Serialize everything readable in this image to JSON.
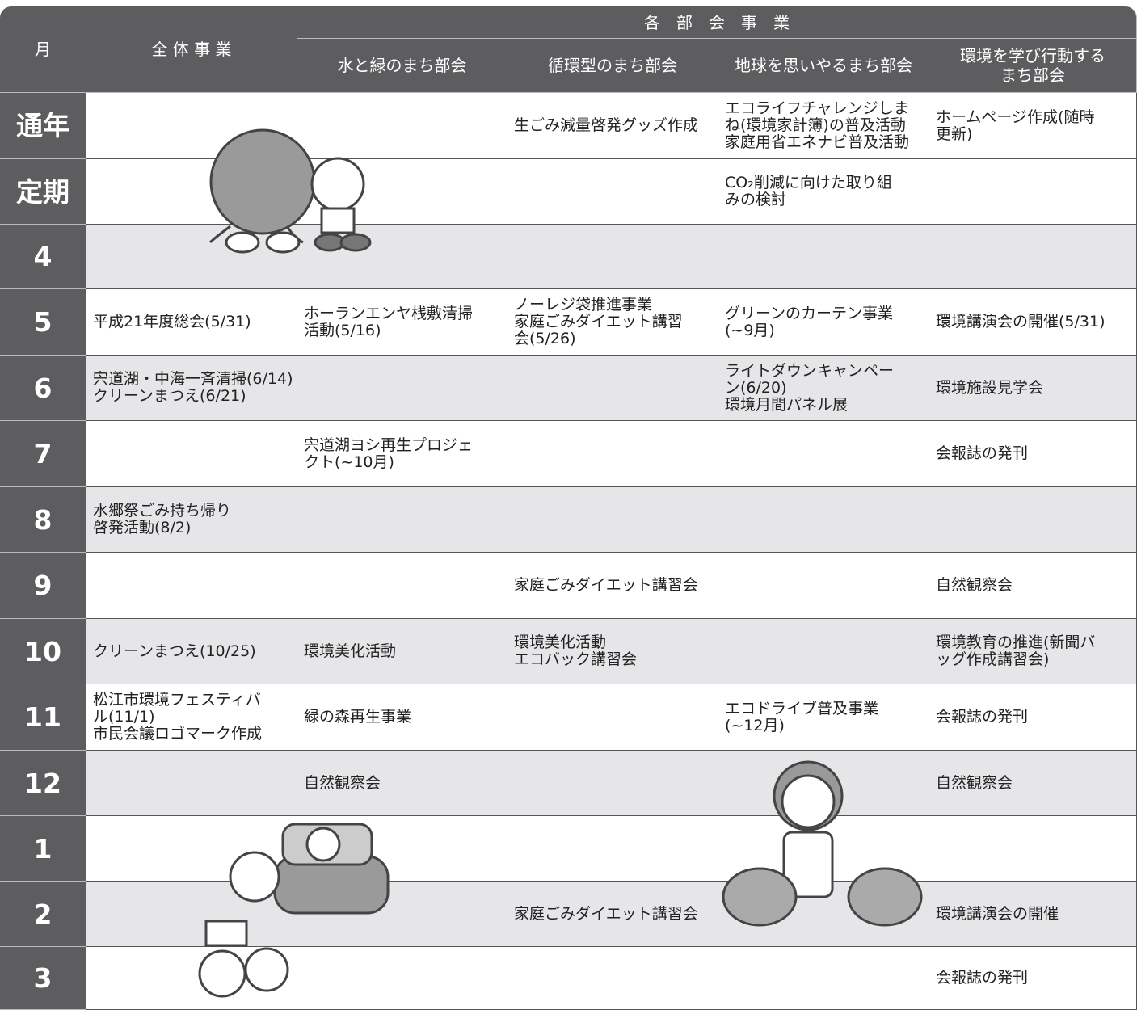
{
  "header": {
    "month": "月",
    "overall": "全 体 事 業",
    "group": "各　部　会　事　業",
    "committees": [
      [
        "水と緑のまち部会"
      ],
      [
        "循環型のまち部会"
      ],
      [
        "地球を思いやるまち部会"
      ],
      [
        "環境を学び行動する",
        "まち部会"
      ]
    ]
  },
  "rows": [
    {
      "month": "通年",
      "cells": [
        [],
        [],
        [
          "生ごみ減量啓発グッズ作成"
        ],
        [
          "エコライフチャレンジしま",
          "ね(環境家計簿)の普及活動",
          "家庭用省エネナビ普及活動"
        ],
        [
          "ホームページ作成(随時",
          "更新)"
        ]
      ]
    },
    {
      "month": "定期",
      "cells": [
        [],
        [],
        [],
        [
          "CO₂削減に向けた取り組",
          "みの検討"
        ],
        []
      ]
    },
    {
      "month": "4",
      "cells": [
        [],
        [],
        [],
        [],
        []
      ]
    },
    {
      "month": "5",
      "cells": [
        [
          "平成21年度総会(5/31)"
        ],
        [
          "ホーランエンヤ桟敷清掃",
          "活動(5/16)"
        ],
        [
          "ノーレジ袋推進事業",
          "家庭ごみダイエット講習",
          "会(5/26)"
        ],
        [
          "グリーンのカーテン事業",
          "(~9月)"
        ],
        [
          "環境講演会の開催(5/31)"
        ]
      ]
    },
    {
      "month": "6",
      "cells": [
        [
          "宍道湖・中海一斉清掃(6/14)",
          "クリーンまつえ(6/21)"
        ],
        [],
        [],
        [
          "ライトダウンキャンペー",
          "ン(6/20)",
          "環境月間パネル展"
        ],
        [
          "環境施設見学会"
        ]
      ]
    },
    {
      "month": "7",
      "cells": [
        [],
        [
          "宍道湖ヨシ再生プロジェ",
          "クト(~10月)"
        ],
        [],
        [],
        [
          "会報誌の発刊"
        ]
      ]
    },
    {
      "month": "8",
      "cells": [
        [
          "水郷祭ごみ持ち帰り",
          "啓発活動(8/2)"
        ],
        [],
        [],
        [],
        []
      ]
    },
    {
      "month": "9",
      "cells": [
        [],
        [],
        [
          "家庭ごみダイエット講習会"
        ],
        [],
        [
          "自然観察会"
        ]
      ]
    },
    {
      "month": "10",
      "cells": [
        [
          "クリーンまつえ(10/25)"
        ],
        [
          "環境美化活動"
        ],
        [
          "環境美化活動",
          "エコバック講習会"
        ],
        [],
        [
          "環境教育の推進(新聞バ",
          "ッグ作成講習会)"
        ]
      ]
    },
    {
      "month": "11",
      "cells": [
        [
          "松江市環境フェスティバ",
          "ル(11/1)",
          "市民会議ロゴマーク作成"
        ],
        [
          "緑の森再生事業"
        ],
        [],
        [
          "エコドライブ普及事業",
          "(~12月)"
        ],
        [
          "会報誌の発刊"
        ]
      ]
    },
    {
      "month": "12",
      "cells": [
        [],
        [
          "自然観察会"
        ],
        [],
        [],
        [
          "自然観察会"
        ]
      ]
    },
    {
      "month": "1",
      "cells": [
        [],
        [],
        [],
        [],
        []
      ]
    },
    {
      "month": "2",
      "cells": [
        [],
        [],
        [
          "家庭ごみダイエット講習会"
        ],
        [],
        [
          "環境講演会の開催"
        ]
      ]
    },
    {
      "month": "3",
      "cells": [
        [],
        [],
        [],
        [],
        [
          "会報誌の発刊"
        ]
      ]
    }
  ]
}
